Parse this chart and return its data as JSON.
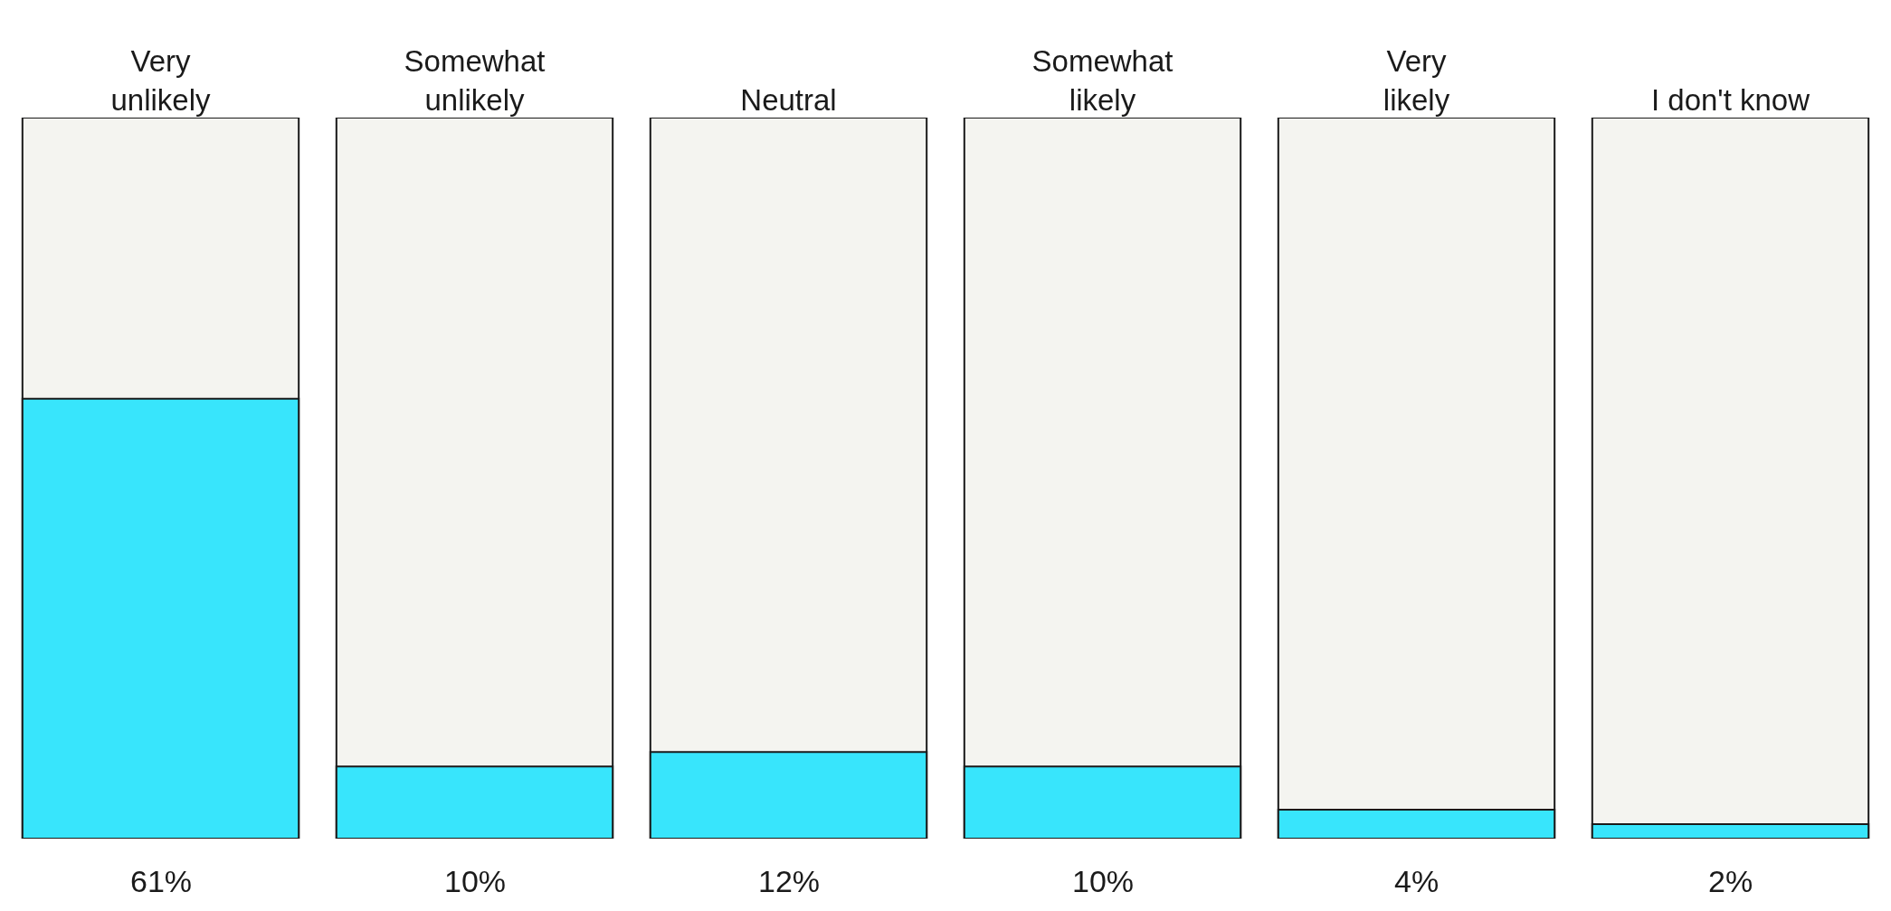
{
  "chart_data": {
    "type": "bar",
    "categories": [
      "Very unlikely",
      "Somewhat unlikely",
      "Neutral",
      "Somewhat likely",
      "Very likely",
      "I don't know"
    ],
    "values": [
      61,
      10,
      12,
      10,
      4,
      2
    ],
    "value_labels": [
      "61%",
      "10%",
      "12%",
      "10%",
      "4%",
      "2%"
    ],
    "color": "#38e5fc",
    "ylim": [
      0,
      100
    ],
    "tick_labels": "x",
    "grid": false,
    "legend": false
  }
}
